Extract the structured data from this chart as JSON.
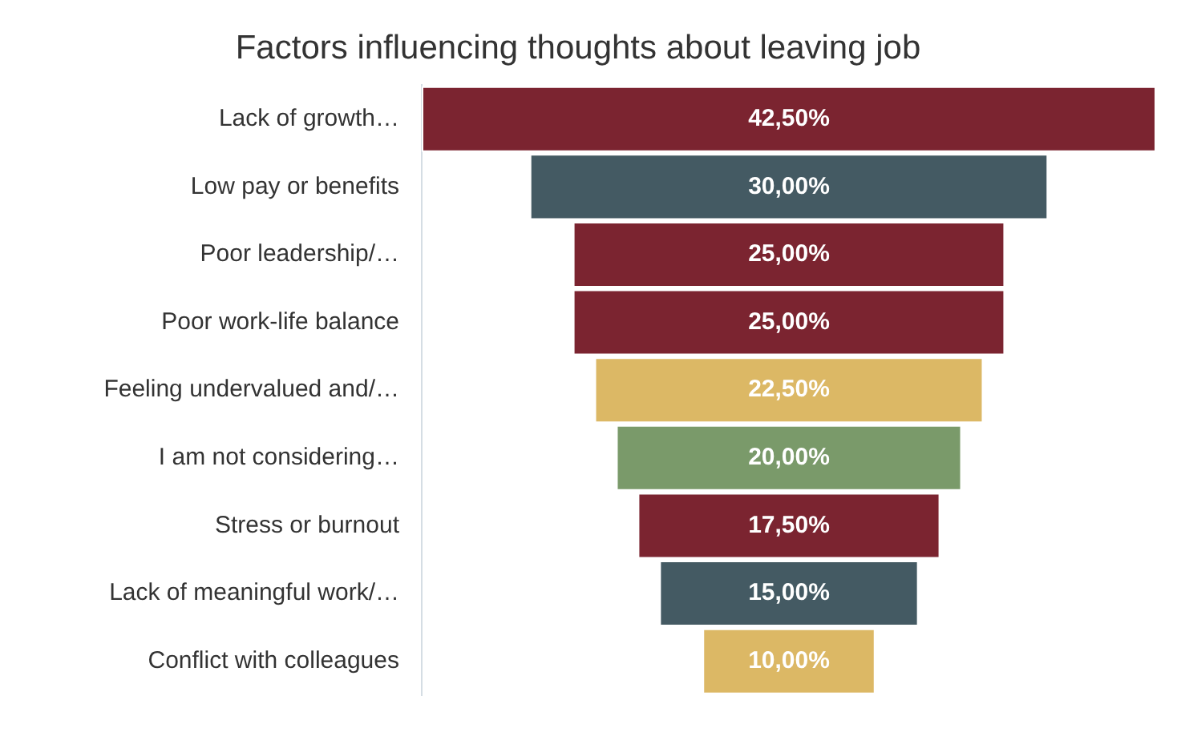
{
  "chart_data": {
    "type": "other",
    "title": "Factors influencing thoughts about leaving job",
    "categories": [
      "Lack of growth…",
      "Low pay or benefits",
      "Poor leadership/…",
      "Poor work-life balance",
      "Feeling undervalued and/…",
      "I am not considering…",
      "Stress or burnout",
      "Lack of meaningful work/…",
      "Conflict with colleagues"
    ],
    "values": [
      42.5,
      30,
      25,
      25,
      22.5,
      20,
      17.5,
      15,
      10
    ],
    "colors": [
      "#7b2430",
      "#445a63",
      "#7b2430",
      "#7b2430",
      "#dcb865",
      "#7a9a6a",
      "#7b2430",
      "#445a63",
      "#dcb865"
    ],
    "value_labels": [
      "42,50%",
      "30,00%",
      "25,00%",
      "25,00%",
      "22,50%",
      "20,00%",
      "17,50%",
      "15,00%",
      "10,00%"
    ]
  }
}
